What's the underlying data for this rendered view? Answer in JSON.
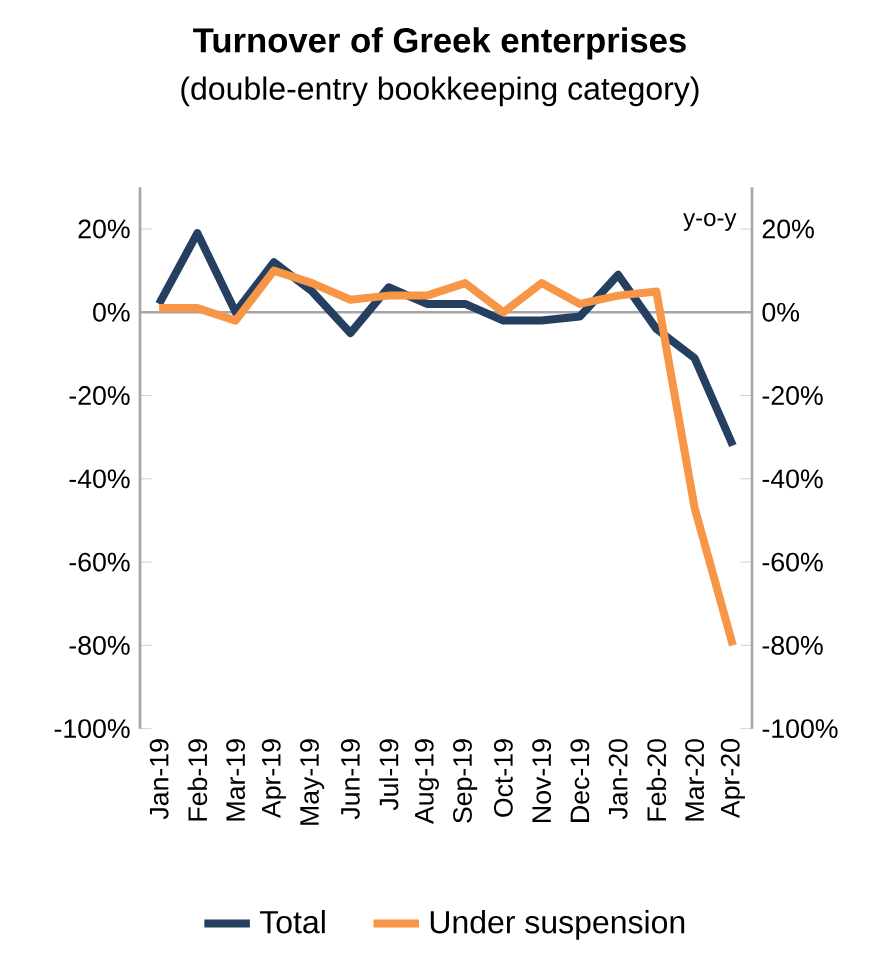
{
  "chart_data": {
    "type": "line",
    "title": "Turnover of Greek enterprises",
    "subtitle": "(double-entry bookkeeping category)",
    "categories": [
      "Jan-19",
      "Feb-19",
      "Mar-19",
      "Apr-19",
      "May-19",
      "Jun-19",
      "Jul-19",
      "Aug-19",
      "Sep-19",
      "Oct-19",
      "Nov-19",
      "Dec-19",
      "Jan-20",
      "Feb-20",
      "Mar-20",
      "Apr-20"
    ],
    "series": [
      {
        "name": "Total",
        "color": "#243f60",
        "values": [
          2,
          19,
          0,
          12,
          5,
          -5,
          6,
          2,
          2,
          -2,
          -2,
          -1,
          9,
          -4,
          -11,
          -32
        ]
      },
      {
        "name": "Under suspension",
        "color": "#f79646",
        "values": [
          1,
          1,
          -2,
          10,
          7,
          3,
          4,
          4,
          7,
          0,
          7,
          2,
          4,
          5,
          -47,
          -80
        ]
      }
    ],
    "ylim": [
      -100,
      30
    ],
    "yticks": [
      {
        "value": -100,
        "label": "-100%"
      },
      {
        "value": -80,
        "label": "-80%"
      },
      {
        "value": -60,
        "label": "-60%"
      },
      {
        "value": -40,
        "label": "-40%"
      },
      {
        "value": -20,
        "label": "-20%"
      },
      {
        "value": 0,
        "label": "0%"
      },
      {
        "value": 20,
        "label": "20%"
      }
    ],
    "y2lim": [
      -100,
      30
    ],
    "y2ticks": [
      {
        "value": -100,
        "label": "-100%"
      },
      {
        "value": -80,
        "label": "-80%"
      },
      {
        "value": -60,
        "label": "-60%"
      },
      {
        "value": -40,
        "label": "-40%"
      },
      {
        "value": -20,
        "label": "-20%"
      },
      {
        "value": 0,
        "label": "0%"
      },
      {
        "value": 20,
        "label": "20%"
      }
    ],
    "annotations": [
      "y-o-y"
    ],
    "legend": "bottom",
    "marker": "none",
    "line_style": "solid"
  }
}
